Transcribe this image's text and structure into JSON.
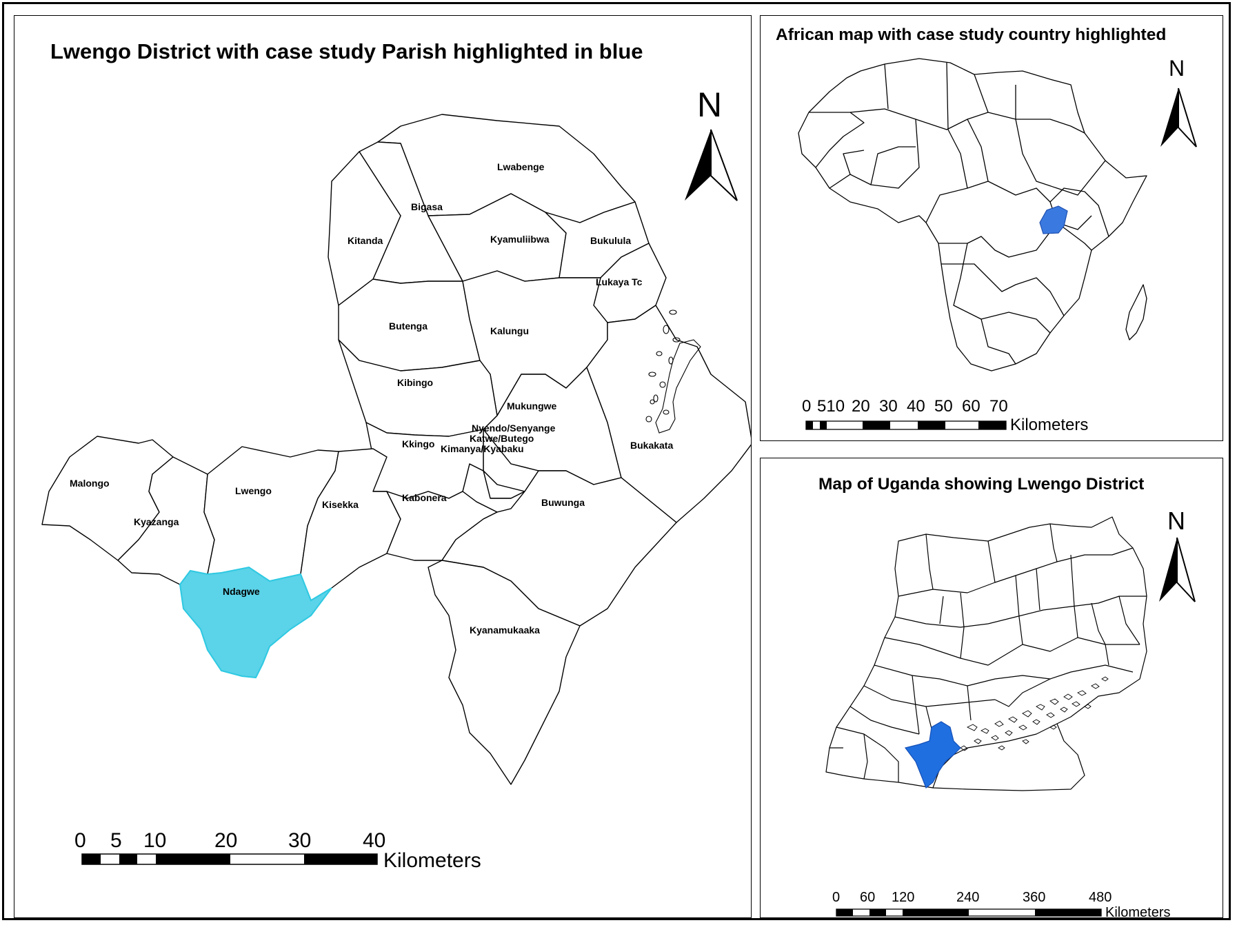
{
  "main_map": {
    "title": "Lwengo District with case study Parish highlighted in blue",
    "north": "N",
    "highlight_color": "#5bd3e8",
    "parishes": {
      "lwabenge": "Lwabenge",
      "bigasa": "Bigasa",
      "kitanda": "Kitanda",
      "kyamuliibwa": "Kyamuliibwa",
      "bukulula": "Bukulula",
      "lukaya_tc": "Lukaya Tc",
      "butenga": "Butenga",
      "kalungu": "Kalungu",
      "kibingo": "Kibingo",
      "mukungwe": "Mukungwe",
      "nyendo_senyange": "Nyendo/Senyange",
      "katwe_butego": "Katwe/Butego",
      "kimanya_kyabaku": "Kimanya/Kyabaku",
      "kkingo": "Kkingo",
      "bukakata": "Bukakata",
      "malongo": "Malongo",
      "lwengo": "Lwengo",
      "kisekka": "Kisekka",
      "kyazanga": "Kyazanga",
      "kabonera": "Kabonera",
      "buwunga": "Buwunga",
      "ndagwe": "Ndagwe",
      "kyanamukaaka": "Kyanamukaaka"
    },
    "scale": {
      "ticks": [
        "0",
        "5",
        "10",
        "20",
        "30",
        "40"
      ],
      "unit": "Kilometers"
    }
  },
  "africa_map": {
    "title": "African map with case study country highlighted",
    "north": "N",
    "highlight_color": "#3a7ae0",
    "scale": {
      "ticks": [
        "0",
        "510",
        "20",
        "30",
        "40",
        "50",
        "60",
        "70"
      ],
      "unit": "Kilometers"
    }
  },
  "uganda_map": {
    "title": "Map of Uganda showing Lwengo District",
    "north": "N",
    "highlight_color": "#1f6fe0",
    "scale": {
      "ticks": [
        "0",
        "60",
        "120",
        "240",
        "360",
        "480"
      ],
      "unit": "Kilometers"
    }
  }
}
